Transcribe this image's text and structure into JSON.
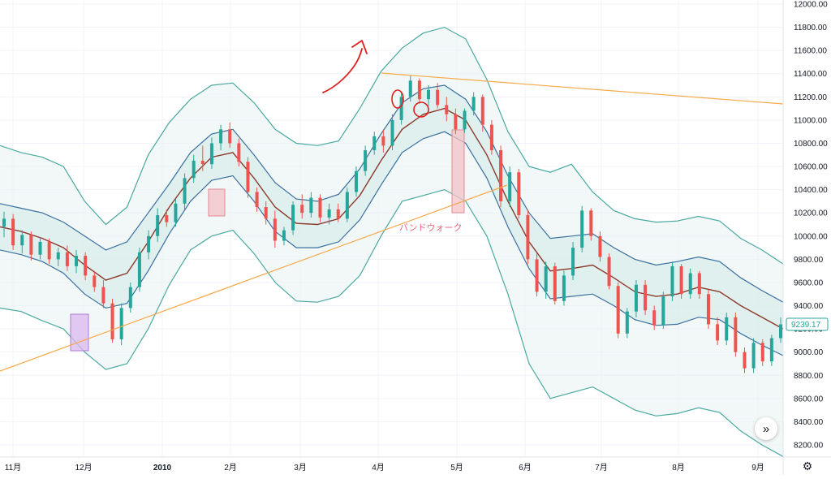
{
  "chart_data": {
    "type": "line",
    "title": "",
    "xlabel": "",
    "ylabel": "",
    "ylim": [
      8100,
      12050
    ],
    "grid": true,
    "y_ticks": [
      "12000.00",
      "11800.00",
      "11600.00",
      "11400.00",
      "11200.00",
      "11000.00",
      "10800.00",
      "10600.00",
      "10400.00",
      "10200.00",
      "10000.00",
      "9800.00",
      "9600.00",
      "9400.00",
      "9200.00",
      "9000.00",
      "8800.00",
      "8600.00",
      "8400.00",
      "8200.00"
    ],
    "x_ticks": [
      {
        "label": "11月",
        "bold": false
      },
      {
        "label": "12月",
        "bold": false
      },
      {
        "label": "2010",
        "bold": true
      },
      {
        "label": "2月",
        "bold": false
      },
      {
        "label": "3月",
        "bold": false
      },
      {
        "label": "4月",
        "bold": false
      },
      {
        "label": "5月",
        "bold": false
      },
      {
        "label": "6月",
        "bold": false
      },
      {
        "label": "7月",
        "bold": false
      },
      {
        "label": "8月",
        "bold": false
      },
      {
        "label": "9月",
        "bold": false
      }
    ],
    "last_price": "9239.17",
    "colors": {
      "up": "#26a69a",
      "down": "#ef5350",
      "middle": "#8b3a2b",
      "inner_bands": "#3a6f9f",
      "outer_bands": "#4aa8a0",
      "band_fill": "#e7f3f1",
      "trendline": "#f7a84a",
      "annotation": "#e8677a",
      "highlight_pink": "#f4c2c6",
      "highlight_purple": "#d9b8ef",
      "red_marks": "#e02020"
    },
    "series": [
      {
        "key": "middle",
        "values": [
          10080,
          10040,
          9980,
          9900,
          9750,
          9620,
          9680,
          9950,
          10250,
          10500,
          10680,
          10720,
          10500,
          10250,
          10110,
          10100,
          10150,
          10350,
          10650,
          10920,
          11050,
          11100,
          11000,
          10700,
          10300,
          9950,
          9700,
          9720,
          9750,
          9640,
          9520,
          9480,
          9500,
          9560,
          9520,
          9400,
          9300,
          9200
        ]
      },
      {
        "key": "inner_upper",
        "values": [
          10280,
          10240,
          10200,
          10120,
          10000,
          9880,
          9950,
          10200,
          10450,
          10720,
          10880,
          10920,
          10700,
          10460,
          10320,
          10300,
          10360,
          10580,
          10880,
          11150,
          11270,
          11300,
          11180,
          10900,
          10520,
          10200,
          9980,
          10000,
          10020,
          9900,
          9800,
          9750,
          9780,
          9820,
          9780,
          9640,
          9530,
          9430
        ]
      },
      {
        "key": "inner_lower",
        "values": [
          9880,
          9840,
          9780,
          9680,
          9500,
          9380,
          9420,
          9700,
          10020,
          10300,
          10480,
          10520,
          10300,
          10040,
          9900,
          9900,
          9950,
          10140,
          10440,
          10720,
          10840,
          10900,
          10800,
          10500,
          10080,
          9720,
          9460,
          9480,
          9500,
          9400,
          9280,
          9230,
          9240,
          9300,
          9280,
          9160,
          9060,
          8970
        ]
      },
      {
        "key": "outer_upper",
        "values": [
          10780,
          10720,
          10680,
          10600,
          10300,
          10100,
          10250,
          10700,
          10980,
          11180,
          11300,
          11320,
          11150,
          10920,
          10800,
          10780,
          10820,
          11100,
          11420,
          11620,
          11750,
          11800,
          11700,
          11350,
          10900,
          10600,
          10550,
          10620,
          10380,
          10220,
          10150,
          10120,
          10130,
          10170,
          10130,
          9980,
          9880,
          9760
        ]
      },
      {
        "key": "outer_lower",
        "values": [
          9380,
          9350,
          9270,
          9200,
          9000,
          8850,
          8900,
          9200,
          9580,
          9880,
          10000,
          10050,
          9850,
          9600,
          9440,
          9430,
          9480,
          9660,
          10000,
          10300,
          10350,
          10400,
          10300,
          10000,
          9500,
          8900,
          8600,
          8650,
          8700,
          8600,
          8500,
          8450,
          8470,
          8520,
          8480,
          8320,
          8200,
          8100
        ]
      }
    ],
    "candles": [
      {
        "o": 10080,
        "h": 10210,
        "l": 9990,
        "c": 10150
      },
      {
        "o": 10150,
        "h": 10190,
        "l": 9880,
        "c": 9920
      },
      {
        "o": 9920,
        "h": 10050,
        "l": 9850,
        "c": 10010
      },
      {
        "o": 10010,
        "h": 10040,
        "l": 9790,
        "c": 9840
      },
      {
        "o": 9840,
        "h": 9990,
        "l": 9800,
        "c": 9950
      },
      {
        "o": 9950,
        "h": 9980,
        "l": 9760,
        "c": 9800
      },
      {
        "o": 9800,
        "h": 9900,
        "l": 9740,
        "c": 9860
      },
      {
        "o": 9860,
        "h": 9920,
        "l": 9700,
        "c": 9740
      },
      {
        "o": 9740,
        "h": 9880,
        "l": 9680,
        "c": 9830
      },
      {
        "o": 9830,
        "h": 9860,
        "l": 9620,
        "c": 9660
      },
      {
        "o": 9660,
        "h": 9700,
        "l": 9520,
        "c": 9560
      },
      {
        "o": 9560,
        "h": 9620,
        "l": 9380,
        "c": 9420
      },
      {
        "o": 9420,
        "h": 9460,
        "l": 9080,
        "c": 9110
      },
      {
        "o": 9110,
        "h": 9420,
        "l": 9060,
        "c": 9380
      },
      {
        "o": 9380,
        "h": 9600,
        "l": 9340,
        "c": 9560
      },
      {
        "o": 9560,
        "h": 9900,
        "l": 9520,
        "c": 9860
      },
      {
        "o": 9860,
        "h": 10050,
        "l": 9800,
        "c": 10000
      },
      {
        "o": 10000,
        "h": 10240,
        "l": 9950,
        "c": 10180
      },
      {
        "o": 10180,
        "h": 10230,
        "l": 10080,
        "c": 10120
      },
      {
        "o": 10120,
        "h": 10320,
        "l": 10080,
        "c": 10280
      },
      {
        "o": 10280,
        "h": 10540,
        "l": 10230,
        "c": 10500
      },
      {
        "o": 10500,
        "h": 10700,
        "l": 10460,
        "c": 10650
      },
      {
        "o": 10650,
        "h": 10780,
        "l": 10560,
        "c": 10620
      },
      {
        "o": 10620,
        "h": 10850,
        "l": 10580,
        "c": 10800
      },
      {
        "o": 10800,
        "h": 10960,
        "l": 10740,
        "c": 10920
      },
      {
        "o": 10920,
        "h": 10980,
        "l": 10760,
        "c": 10800
      },
      {
        "o": 10800,
        "h": 10840,
        "l": 10600,
        "c": 10640
      },
      {
        "o": 10640,
        "h": 10680,
        "l": 10330,
        "c": 10380
      },
      {
        "o": 10380,
        "h": 10420,
        "l": 10210,
        "c": 10250
      },
      {
        "o": 10250,
        "h": 10300,
        "l": 10100,
        "c": 10150
      },
      {
        "o": 10150,
        "h": 10220,
        "l": 9900,
        "c": 9960
      },
      {
        "o": 9960,
        "h": 10080,
        "l": 9920,
        "c": 10050
      },
      {
        "o": 10050,
        "h": 10300,
        "l": 10010,
        "c": 10270
      },
      {
        "o": 10270,
        "h": 10360,
        "l": 10150,
        "c": 10200
      },
      {
        "o": 10200,
        "h": 10380,
        "l": 10160,
        "c": 10330
      },
      {
        "o": 10330,
        "h": 10360,
        "l": 10120,
        "c": 10160
      },
      {
        "o": 10160,
        "h": 10280,
        "l": 10100,
        "c": 10230
      },
      {
        "o": 10230,
        "h": 10280,
        "l": 10120,
        "c": 10150
      },
      {
        "o": 10150,
        "h": 10420,
        "l": 10120,
        "c": 10380
      },
      {
        "o": 10380,
        "h": 10600,
        "l": 10340,
        "c": 10560
      },
      {
        "o": 10560,
        "h": 10780,
        "l": 10520,
        "c": 10740
      },
      {
        "o": 10740,
        "h": 10900,
        "l": 10700,
        "c": 10860
      },
      {
        "o": 10860,
        "h": 10920,
        "l": 10720,
        "c": 10780
      },
      {
        "o": 10780,
        "h": 11050,
        "l": 10740,
        "c": 11000
      },
      {
        "o": 11000,
        "h": 11240,
        "l": 10960,
        "c": 11200
      },
      {
        "o": 11200,
        "h": 11380,
        "l": 11160,
        "c": 11340
      },
      {
        "o": 11340,
        "h": 11360,
        "l": 11140,
        "c": 11180
      },
      {
        "o": 11180,
        "h": 11300,
        "l": 11120,
        "c": 11260
      },
      {
        "o": 11260,
        "h": 11320,
        "l": 11100,
        "c": 11130
      },
      {
        "o": 11130,
        "h": 11200,
        "l": 10990,
        "c": 11050
      },
      {
        "o": 11050,
        "h": 11100,
        "l": 10880,
        "c": 10920
      },
      {
        "o": 10920,
        "h": 11100,
        "l": 10890,
        "c": 11080
      },
      {
        "o": 11080,
        "h": 11240,
        "l": 11040,
        "c": 11200
      },
      {
        "o": 11200,
        "h": 11220,
        "l": 10900,
        "c": 10960
      },
      {
        "o": 10960,
        "h": 11000,
        "l": 10700,
        "c": 10740
      },
      {
        "o": 10740,
        "h": 10780,
        "l": 10250,
        "c": 10300
      },
      {
        "o": 10300,
        "h": 10600,
        "l": 10250,
        "c": 10550
      },
      {
        "o": 10550,
        "h": 10580,
        "l": 10150,
        "c": 10180
      },
      {
        "o": 10180,
        "h": 10220,
        "l": 9760,
        "c": 9800
      },
      {
        "o": 9800,
        "h": 9850,
        "l": 9480,
        "c": 9520
      },
      {
        "o": 9520,
        "h": 9780,
        "l": 9460,
        "c": 9740
      },
      {
        "o": 9740,
        "h": 9770,
        "l": 9410,
        "c": 9440
      },
      {
        "o": 9440,
        "h": 9700,
        "l": 9400,
        "c": 9660
      },
      {
        "o": 9660,
        "h": 9950,
        "l": 9620,
        "c": 9900
      },
      {
        "o": 9900,
        "h": 10260,
        "l": 9860,
        "c": 10220
      },
      {
        "o": 10220,
        "h": 10240,
        "l": 9960,
        "c": 10000
      },
      {
        "o": 10000,
        "h": 10040,
        "l": 9780,
        "c": 9820
      },
      {
        "o": 9820,
        "h": 9850,
        "l": 9540,
        "c": 9570
      },
      {
        "o": 9570,
        "h": 9600,
        "l": 9120,
        "c": 9160
      },
      {
        "o": 9160,
        "h": 9380,
        "l": 9120,
        "c": 9350
      },
      {
        "o": 9350,
        "h": 9620,
        "l": 9300,
        "c": 9580
      },
      {
        "o": 9580,
        "h": 9620,
        "l": 9320,
        "c": 9360
      },
      {
        "o": 9360,
        "h": 9400,
        "l": 9190,
        "c": 9230
      },
      {
        "o": 9230,
        "h": 9520,
        "l": 9200,
        "c": 9480
      },
      {
        "o": 9480,
        "h": 9780,
        "l": 9440,
        "c": 9740
      },
      {
        "o": 9740,
        "h": 9760,
        "l": 9460,
        "c": 9500
      },
      {
        "o": 9500,
        "h": 9720,
        "l": 9460,
        "c": 9680
      },
      {
        "o": 9680,
        "h": 9700,
        "l": 9460,
        "c": 9500
      },
      {
        "o": 9500,
        "h": 9540,
        "l": 9200,
        "c": 9240
      },
      {
        "o": 9240,
        "h": 9300,
        "l": 9060,
        "c": 9100
      },
      {
        "o": 9100,
        "h": 9340,
        "l": 9060,
        "c": 9300
      },
      {
        "o": 9300,
        "h": 9340,
        "l": 8960,
        "c": 9000
      },
      {
        "o": 9000,
        "h": 9040,
        "l": 8820,
        "c": 8860
      },
      {
        "o": 8860,
        "h": 9120,
        "l": 8820,
        "c": 9080
      },
      {
        "o": 9080,
        "h": 9110,
        "l": 8880,
        "c": 8920
      },
      {
        "o": 8920,
        "h": 9150,
        "l": 8880,
        "c": 9120
      },
      {
        "o": 9120,
        "h": 9300,
        "l": 9080,
        "c": 9239
      }
    ],
    "annotations": {
      "band_walk_label": "バンドウォーク"
    }
  }
}
